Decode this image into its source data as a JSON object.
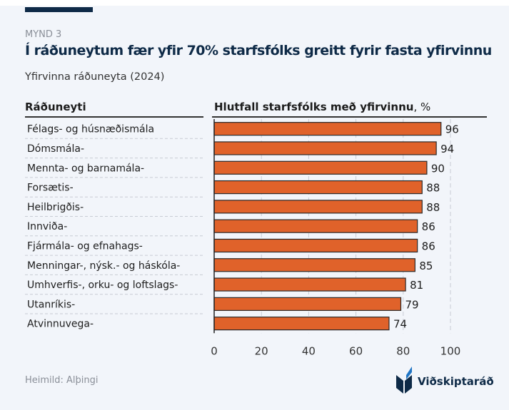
{
  "kicker": "MYND 3",
  "title": "Í ráðuneytum fær yfir 70% starfsfólks greitt fyrir fasta yfirvinnu",
  "subtitle": "Yfirvinna ráðuneyta (2024)",
  "source": "Heimild: Alþingi",
  "logo_text": "Viðskiptaráð",
  "colors": {
    "bar": "#e0622a",
    "bar_stroke": "#2a2a2a",
    "navy": "#0e2a47",
    "accent_blue": "#1f74c4"
  },
  "chart_data": {
    "type": "bar",
    "orientation": "horizontal",
    "category_header": "Ráðuneyti",
    "value_header_bold": "Hlutfall starfsfólks með yfirvinnu",
    "value_header_unit": ", %",
    "categories": [
      "Félags- og húsnæðismála",
      "Dómsmála-",
      "Mennta- og barnamála-",
      "Forsætis-",
      "Heilbrigðis-",
      "Innviða-",
      "Fjármála- og efnahags-",
      "Menningar-, nýsk.- og háskóla-",
      "Umhverfis-, orku- og loftslags-",
      "Utanríkis-",
      "Atvinnuvega-"
    ],
    "values": [
      96,
      94,
      90,
      88,
      88,
      86,
      86,
      85,
      81,
      79,
      74
    ],
    "xlim": [
      0,
      100
    ],
    "xticks": [
      "0",
      "20",
      "40",
      "60",
      "80",
      "100"
    ],
    "grid": true
  }
}
